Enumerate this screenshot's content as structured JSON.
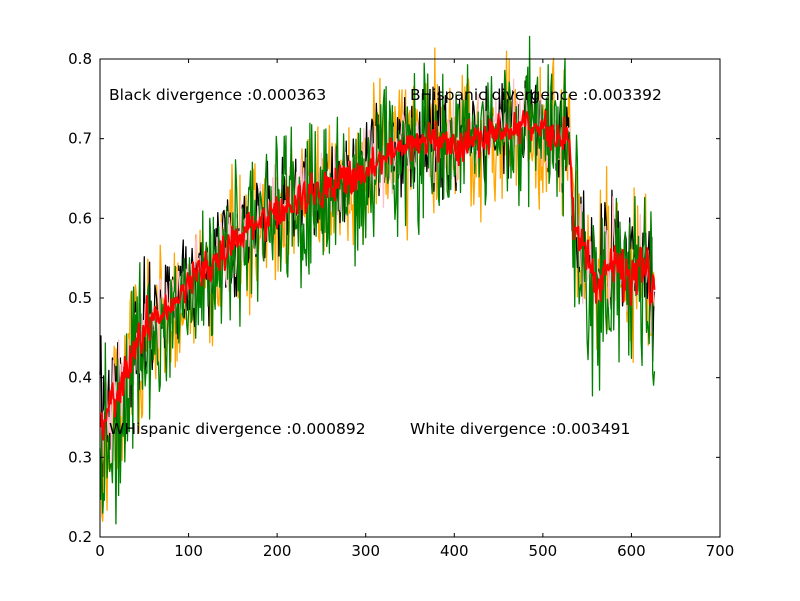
{
  "chart_data": {
    "type": "line",
    "xlim": [
      0,
      700
    ],
    "ylim": [
      0.2,
      0.8
    ],
    "x_ticks": [
      0,
      100,
      200,
      300,
      400,
      500,
      600,
      700
    ],
    "y_ticks": [
      0.2,
      0.3,
      0.4,
      0.5,
      0.6,
      0.7,
      0.8
    ],
    "x_tick_labels": [
      "0",
      "100",
      "200",
      "300",
      "400",
      "500",
      "600",
      "700"
    ],
    "y_tick_labels": [
      "0.2",
      "0.3",
      "0.4",
      "0.5",
      "0.6",
      "0.7",
      "0.8"
    ],
    "grid": false,
    "legend": "none",
    "annotations": [
      {
        "text": "Black divergence :0.000363",
        "x": 10,
        "y": 0.75
      },
      {
        "text": "BHispanic divergence :0.003392",
        "x": 350,
        "y": 0.75
      },
      {
        "text": "WHispanic divergence :0.000892",
        "x": 10,
        "y": 0.33
      },
      {
        "text": "White divergence :0.003491",
        "x": 350,
        "y": 0.33
      }
    ],
    "series": [
      {
        "color": "#ffa500",
        "noise": 0.085,
        "x": [
          0,
          5,
          10,
          20,
          30,
          40,
          50,
          60,
          80,
          100,
          120,
          140,
          160,
          180,
          200,
          220,
          240,
          260,
          280,
          300,
          320,
          340,
          360,
          380,
          400,
          420,
          440,
          460,
          480,
          500,
          520,
          530,
          535,
          540,
          550,
          560,
          570,
          580,
          590,
          600,
          610,
          620,
          626
        ],
        "y": [
          0.33,
          0.31,
          0.33,
          0.36,
          0.39,
          0.43,
          0.45,
          0.46,
          0.48,
          0.51,
          0.53,
          0.55,
          0.58,
          0.6,
          0.61,
          0.62,
          0.63,
          0.64,
          0.65,
          0.66,
          0.68,
          0.69,
          0.69,
          0.7,
          0.69,
          0.7,
          0.7,
          0.71,
          0.72,
          0.71,
          0.7,
          0.7,
          0.59,
          0.58,
          0.55,
          0.52,
          0.54,
          0.55,
          0.53,
          0.52,
          0.55,
          0.52,
          0.48
        ]
      },
      {
        "color": "#000000",
        "noise": 0.06,
        "x": [
          0,
          5,
          10,
          20,
          30,
          40,
          50,
          60,
          80,
          100,
          120,
          140,
          160,
          180,
          200,
          220,
          240,
          260,
          280,
          300,
          320,
          340,
          360,
          380,
          400,
          420,
          440,
          460,
          480,
          500,
          520,
          530,
          535,
          540,
          550,
          560,
          570,
          580,
          590,
          600,
          610,
          620,
          626
        ],
        "y": [
          0.35,
          0.34,
          0.35,
          0.38,
          0.41,
          0.44,
          0.46,
          0.47,
          0.49,
          0.52,
          0.54,
          0.56,
          0.58,
          0.6,
          0.61,
          0.62,
          0.63,
          0.64,
          0.65,
          0.66,
          0.68,
          0.69,
          0.69,
          0.7,
          0.69,
          0.7,
          0.7,
          0.71,
          0.72,
          0.71,
          0.7,
          0.7,
          0.59,
          0.58,
          0.55,
          0.52,
          0.54,
          0.55,
          0.53,
          0.52,
          0.55,
          0.52,
          0.5
        ]
      },
      {
        "color": "#ffc0cb",
        "noise": 0.05,
        "x": [
          0,
          5,
          10,
          20,
          30,
          40,
          50,
          60,
          80,
          100,
          120,
          140,
          160,
          180,
          200,
          220,
          240,
          260,
          280,
          300,
          320,
          340,
          360,
          380,
          400,
          420,
          440,
          460,
          480,
          500,
          520,
          530,
          535,
          540,
          550,
          560,
          570,
          580,
          590,
          600,
          610,
          620,
          626
        ],
        "y": [
          0.36,
          0.35,
          0.36,
          0.38,
          0.41,
          0.44,
          0.46,
          0.47,
          0.49,
          0.52,
          0.54,
          0.56,
          0.58,
          0.6,
          0.61,
          0.62,
          0.63,
          0.64,
          0.65,
          0.66,
          0.68,
          0.69,
          0.69,
          0.7,
          0.69,
          0.7,
          0.7,
          0.71,
          0.72,
          0.71,
          0.7,
          0.7,
          0.59,
          0.58,
          0.55,
          0.52,
          0.54,
          0.55,
          0.53,
          0.52,
          0.55,
          0.52,
          0.5
        ]
      },
      {
        "color": "#008000",
        "noise": 0.095,
        "x": [
          0,
          5,
          10,
          20,
          30,
          40,
          50,
          60,
          80,
          100,
          120,
          140,
          160,
          180,
          200,
          220,
          240,
          260,
          280,
          300,
          320,
          340,
          360,
          380,
          400,
          420,
          440,
          460,
          480,
          500,
          520,
          530,
          535,
          540,
          550,
          560,
          570,
          580,
          590,
          600,
          610,
          620,
          626
        ],
        "y": [
          0.34,
          0.33,
          0.33,
          0.34,
          0.37,
          0.41,
          0.44,
          0.45,
          0.47,
          0.5,
          0.52,
          0.54,
          0.56,
          0.59,
          0.6,
          0.61,
          0.62,
          0.63,
          0.64,
          0.65,
          0.67,
          0.68,
          0.69,
          0.7,
          0.69,
          0.7,
          0.7,
          0.71,
          0.72,
          0.71,
          0.7,
          0.7,
          0.58,
          0.57,
          0.52,
          0.49,
          0.52,
          0.54,
          0.52,
          0.51,
          0.54,
          0.5,
          0.46
        ]
      },
      {
        "color": "#ff0000",
        "noise": 0.022,
        "x": [
          0,
          5,
          10,
          20,
          30,
          40,
          50,
          60,
          80,
          100,
          120,
          140,
          160,
          180,
          200,
          220,
          240,
          260,
          280,
          300,
          320,
          340,
          360,
          380,
          400,
          420,
          440,
          460,
          480,
          500,
          520,
          530,
          535,
          540,
          550,
          560,
          570,
          580,
          590,
          600,
          610,
          620,
          626
        ],
        "y": [
          0.36,
          0.36,
          0.36,
          0.38,
          0.41,
          0.44,
          0.46,
          0.47,
          0.49,
          0.52,
          0.54,
          0.56,
          0.58,
          0.6,
          0.61,
          0.62,
          0.63,
          0.64,
          0.65,
          0.66,
          0.68,
          0.69,
          0.69,
          0.7,
          0.69,
          0.7,
          0.7,
          0.71,
          0.72,
          0.71,
          0.7,
          0.7,
          0.59,
          0.58,
          0.55,
          0.52,
          0.54,
          0.55,
          0.53,
          0.52,
          0.55,
          0.52,
          0.5
        ]
      }
    ]
  }
}
